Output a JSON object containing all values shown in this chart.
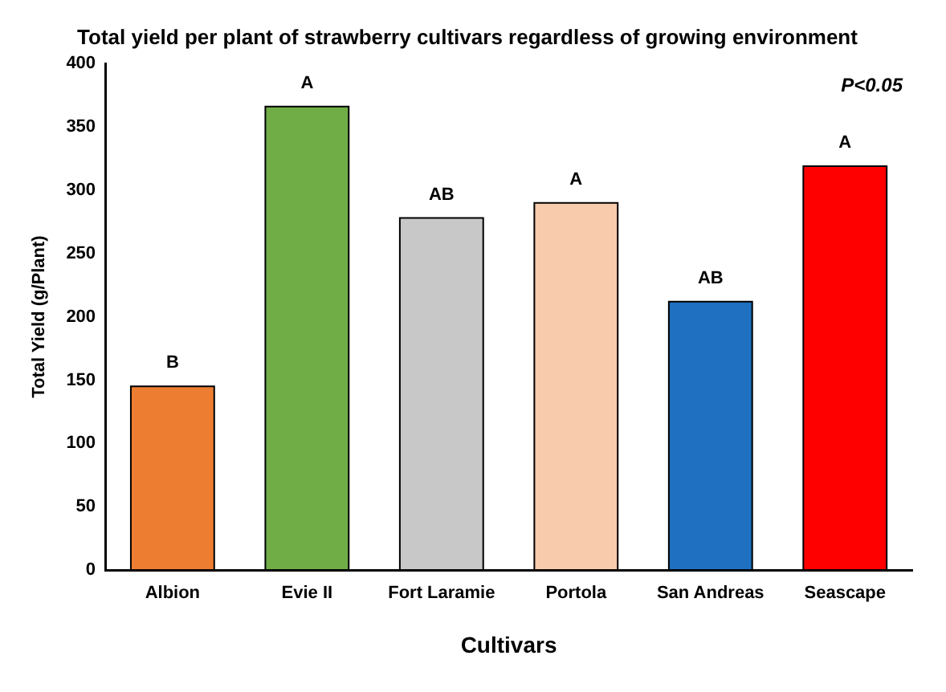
{
  "chart_data": {
    "type": "bar",
    "title": "Total yield per plant of strawberry cultivars regardless of growing environment",
    "xlabel": "Cultivars",
    "ylabel": "Total Yield (g/Plant)",
    "categories": [
      "Albion",
      "Evie II",
      "Fort Laramie",
      "Portola",
      "San Andreas",
      "Seascape"
    ],
    "values": [
      145,
      366,
      278,
      290,
      212,
      319
    ],
    "colors": [
      "#ed7d31",
      "#70ad47",
      "#c8c8c8",
      "#f8cbad",
      "#1f70c1",
      "#ff0000"
    ],
    "ylim": [
      0,
      400
    ],
    "yticks": [
      0,
      50,
      100,
      150,
      200,
      250,
      300,
      350,
      400
    ],
    "grid": false,
    "legend": false,
    "annotations": [
      {
        "text": "B",
        "x": "Albion",
        "y": 145
      },
      {
        "text": "A",
        "x": "Evie II",
        "y": 366
      },
      {
        "text": "AB",
        "x": "Fort Laramie",
        "y": 278
      },
      {
        "text": "A",
        "x": "Portola",
        "y": 290
      },
      {
        "text": "AB",
        "x": "San Andreas",
        "y": 212
      },
      {
        "text": "A",
        "x": "Seascape",
        "y": 319
      },
      "P<0.05"
    ]
  }
}
